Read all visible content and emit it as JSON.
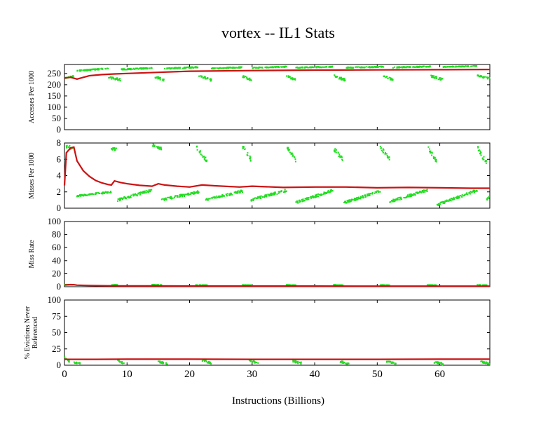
{
  "chart_data": {
    "type": "scatter",
    "title": "vortex -- IL1  Stats",
    "xlabel": "Instructions (Billions)",
    "xlim": [
      0,
      68
    ],
    "xticks": [
      0,
      10,
      20,
      30,
      40,
      50,
      60
    ],
    "colors": {
      "sample": "#22dd22",
      "cumulative": "#cc1111"
    },
    "panels": [
      {
        "ylabel": [
          "Accesses Per 1000"
        ],
        "ylim": [
          0,
          290
        ],
        "yticks": [
          0,
          50,
          100,
          150,
          200,
          250
        ],
        "cumulative": {
          "x": [
            0,
            1,
            2,
            4,
            6,
            8,
            10,
            15,
            20,
            30,
            40,
            50,
            60,
            68
          ],
          "y": [
            230,
            233,
            225,
            240,
            245,
            248,
            250,
            255,
            260,
            263,
            265,
            266,
            267,
            268
          ]
        },
        "samples": [
          {
            "x0": 0.0,
            "x1": 1.5,
            "y0": 228,
            "y1": 238,
            "spread": 6
          },
          {
            "x0": 2.0,
            "x1": 7.0,
            "y0": 262,
            "y1": 272,
            "spread": 5
          },
          {
            "x0": 7.0,
            "x1": 9.0,
            "y0": 232,
            "y1": 222,
            "spread": 10
          },
          {
            "x0": 9.0,
            "x1": 14.0,
            "y0": 268,
            "y1": 274,
            "spread": 5
          },
          {
            "x0": 14.5,
            "x1": 16.0,
            "y0": 235,
            "y1": 220,
            "spread": 10
          },
          {
            "x0": 16.0,
            "x1": 21.5,
            "y0": 272,
            "y1": 278,
            "spread": 5
          },
          {
            "x0": 21.5,
            "x1": 23.5,
            "y0": 240,
            "y1": 220,
            "spread": 10
          },
          {
            "x0": 23.5,
            "x1": 28.5,
            "y0": 272,
            "y1": 278,
            "spread": 5
          },
          {
            "x0": 28.5,
            "x1": 30.0,
            "y0": 238,
            "y1": 220,
            "spread": 10
          },
          {
            "x0": 30.0,
            "x1": 35.5,
            "y0": 275,
            "y1": 280,
            "spread": 4
          },
          {
            "x0": 35.5,
            "x1": 37.0,
            "y0": 238,
            "y1": 222,
            "spread": 10
          },
          {
            "x0": 37.0,
            "x1": 43.0,
            "y0": 276,
            "y1": 280,
            "spread": 4
          },
          {
            "x0": 43.0,
            "x1": 45.0,
            "y0": 240,
            "y1": 220,
            "spread": 10
          },
          {
            "x0": 45.0,
            "x1": 51.0,
            "y0": 276,
            "y1": 280,
            "spread": 4
          },
          {
            "x0": 51.0,
            "x1": 52.5,
            "y0": 240,
            "y1": 222,
            "spread": 10
          },
          {
            "x0": 52.5,
            "x1": 58.5,
            "y0": 277,
            "y1": 281,
            "spread": 4
          },
          {
            "x0": 58.5,
            "x1": 60.5,
            "y0": 240,
            "y1": 222,
            "spread": 10
          },
          {
            "x0": 60.5,
            "x1": 66.0,
            "y0": 279,
            "y1": 283,
            "spread": 3
          },
          {
            "x0": 66.0,
            "x1": 68.0,
            "y0": 240,
            "y1": 228,
            "spread": 8
          }
        ]
      },
      {
        "ylabel": [
          "Misses Per 1000"
        ],
        "ylim": [
          0,
          8
        ],
        "yticks": [
          0,
          2,
          4,
          6,
          8
        ],
        "cumulative": {
          "x": [
            0,
            0.3,
            1,
            1.5,
            2,
            3,
            4,
            5,
            6,
            7,
            7.5,
            8,
            9,
            10,
            12,
            14,
            15,
            16,
            18,
            20,
            22,
            24,
            28,
            30,
            35,
            40,
            45,
            50,
            55,
            60,
            65,
            68
          ],
          "y": [
            2.8,
            6.8,
            7.4,
            7.5,
            5.8,
            4.6,
            3.9,
            3.4,
            3.1,
            2.9,
            2.85,
            3.35,
            3.15,
            3.0,
            2.8,
            2.7,
            3.0,
            2.85,
            2.7,
            2.6,
            2.85,
            2.75,
            2.6,
            2.7,
            2.55,
            2.6,
            2.6,
            2.5,
            2.55,
            2.5,
            2.45,
            2.45
          ]
        },
        "samples": [
          {
            "x0": 0.2,
            "x1": 1.6,
            "y0": 7.6,
            "y1": 7.3,
            "spread": 0.4
          },
          {
            "x0": 2.0,
            "x1": 7.5,
            "y0": 1.5,
            "y1": 2.0,
            "spread": 0.2
          },
          {
            "x0": 7.5,
            "x1": 8.5,
            "y0": 7.3,
            "y1": 7.2,
            "spread": 0.3
          },
          {
            "x0": 8.5,
            "x1": 14.0,
            "y0": 1.0,
            "y1": 2.2,
            "spread": 0.3
          },
          {
            "x0": 14.0,
            "x1": 15.5,
            "y0": 7.8,
            "y1": 7.3,
            "spread": 0.3
          },
          {
            "x0": 15.5,
            "x1": 21.5,
            "y0": 1.0,
            "y1": 2.0,
            "spread": 0.3
          },
          {
            "x0": 21.0,
            "x1": 22.8,
            "y0": 7.6,
            "y1": 5.8,
            "spread": 0.5
          },
          {
            "x0": 22.5,
            "x1": 28.5,
            "y0": 1.0,
            "y1": 2.1,
            "spread": 0.3
          },
          {
            "x0": 28.5,
            "x1": 29.8,
            "y0": 7.5,
            "y1": 6.0,
            "spread": 0.5
          },
          {
            "x0": 29.8,
            "x1": 35.5,
            "y0": 1.0,
            "y1": 2.2,
            "spread": 0.3
          },
          {
            "x0": 35.5,
            "x1": 37.0,
            "y0": 7.5,
            "y1": 5.8,
            "spread": 0.5
          },
          {
            "x0": 37.0,
            "x1": 43.0,
            "y0": 0.7,
            "y1": 2.2,
            "spread": 0.3
          },
          {
            "x0": 43.0,
            "x1": 44.5,
            "y0": 7.3,
            "y1": 6.0,
            "spread": 0.5
          },
          {
            "x0": 44.5,
            "x1": 50.5,
            "y0": 0.6,
            "y1": 2.1,
            "spread": 0.3
          },
          {
            "x0": 50.5,
            "x1": 52.0,
            "y0": 7.5,
            "y1": 6.0,
            "spread": 0.5
          },
          {
            "x0": 52.0,
            "x1": 58.0,
            "y0": 0.8,
            "y1": 2.2,
            "spread": 0.3
          },
          {
            "x0": 58.0,
            "x1": 59.5,
            "y0": 7.5,
            "y1": 5.8,
            "spread": 0.5
          },
          {
            "x0": 59.5,
            "x1": 66.0,
            "y0": 0.4,
            "y1": 2.2,
            "spread": 0.3
          },
          {
            "x0": 66.0,
            "x1": 67.5,
            "y0": 7.5,
            "y1": 5.5,
            "spread": 0.6
          },
          {
            "x0": 67.5,
            "x1": 68.0,
            "y0": 1.0,
            "y1": 1.5,
            "spread": 0.3
          }
        ]
      },
      {
        "ylabel": [
          "Miss Rate"
        ],
        "ylim": [
          0,
          100
        ],
        "yticks": [
          0,
          20,
          40,
          60,
          80,
          100
        ],
        "cumulative": {
          "x": [
            0,
            1,
            1.5,
            2,
            4,
            8,
            15,
            20,
            30,
            40,
            50,
            60,
            68
          ],
          "y": [
            2.5,
            3.2,
            3.0,
            2.4,
            1.8,
            1.3,
            1.2,
            1.1,
            1.0,
            1.0,
            0.9,
            0.9,
            0.9
          ]
        },
        "samples": [
          {
            "x0": 0.0,
            "x1": 1.8,
            "y0": 3.0,
            "y1": 3.2,
            "spread": 0.6
          },
          {
            "x0": 7.5,
            "x1": 8.5,
            "y0": 2.8,
            "y1": 2.8,
            "spread": 0.4
          },
          {
            "x0": 14.0,
            "x1": 15.5,
            "y0": 3.0,
            "y1": 2.8,
            "spread": 0.4
          },
          {
            "x0": 21.0,
            "x1": 22.8,
            "y0": 2.8,
            "y1": 2.4,
            "spread": 0.4
          },
          {
            "x0": 28.5,
            "x1": 29.8,
            "y0": 2.8,
            "y1": 2.4,
            "spread": 0.4
          },
          {
            "x0": 35.5,
            "x1": 37.0,
            "y0": 2.8,
            "y1": 2.4,
            "spread": 0.4
          },
          {
            "x0": 43.0,
            "x1": 44.5,
            "y0": 2.8,
            "y1": 2.4,
            "spread": 0.4
          },
          {
            "x0": 50.5,
            "x1": 52.0,
            "y0": 2.8,
            "y1": 2.4,
            "spread": 0.4
          },
          {
            "x0": 58.0,
            "x1": 59.5,
            "y0": 2.8,
            "y1": 2.4,
            "spread": 0.4
          },
          {
            "x0": 66.0,
            "x1": 67.5,
            "y0": 2.8,
            "y1": 2.4,
            "spread": 0.4
          }
        ]
      },
      {
        "ylabel": [
          "% Evictions Never",
          "Referenced"
        ],
        "ylim": [
          0,
          100
        ],
        "yticks": [
          0,
          25,
          50,
          75,
          100
        ],
        "cumulative": {
          "x": [
            0,
            5,
            10,
            20,
            30,
            40,
            50,
            60,
            68
          ],
          "y": [
            9.0,
            9.0,
            9.2,
            9.2,
            9.0,
            9.0,
            9.0,
            9.2,
            9.2
          ]
        },
        "samples": [
          {
            "x0": 0.0,
            "x1": 0.8,
            "y0": 12,
            "y1": 6,
            "spread": 3
          },
          {
            "x0": 1.5,
            "x1": 2.5,
            "y0": 4,
            "y1": 3,
            "spread": 2
          },
          {
            "x0": 8.5,
            "x1": 9.5,
            "y0": 8,
            "y1": 3,
            "spread": 3
          },
          {
            "x0": 15.0,
            "x1": 16.5,
            "y0": 6,
            "y1": 2,
            "spread": 3
          },
          {
            "x0": 22.0,
            "x1": 23.5,
            "y0": 8,
            "y1": 3,
            "spread": 3
          },
          {
            "x0": 29.5,
            "x1": 31.0,
            "y0": 8,
            "y1": 3,
            "spread": 3
          },
          {
            "x0": 36.5,
            "x1": 38.0,
            "y0": 6,
            "y1": 3,
            "spread": 3
          },
          {
            "x0": 44.0,
            "x1": 45.5,
            "y0": 6,
            "y1": 2,
            "spread": 3
          },
          {
            "x0": 51.5,
            "x1": 53.0,
            "y0": 6,
            "y1": 2,
            "spread": 3
          },
          {
            "x0": 59.0,
            "x1": 60.5,
            "y0": 5,
            "y1": 2,
            "spread": 3
          },
          {
            "x0": 66.5,
            "x1": 68.0,
            "y0": 6,
            "y1": 2,
            "spread": 3
          }
        ]
      }
    ]
  }
}
